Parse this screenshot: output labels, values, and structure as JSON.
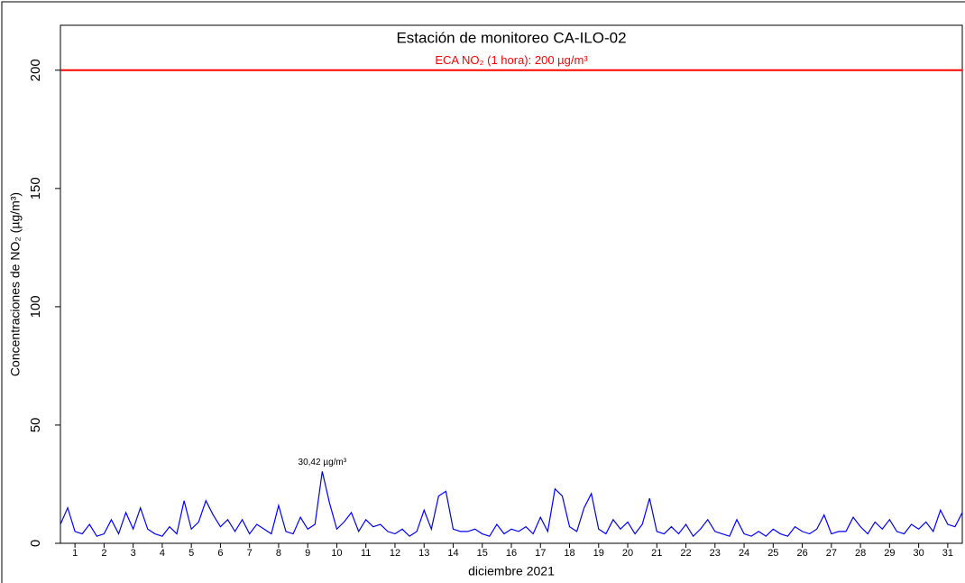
{
  "chart_data": {
    "type": "line",
    "title": "Estación de monitoreo  CA-ILO-02",
    "x_label": "diciembre 2021",
    "y_label": "Concentraciones de NO₂ (µg/m³)",
    "reference_line": {
      "value": 200,
      "label": "ECA NO₂ (1 hora): 200 µg/m³",
      "color": "#ff0000"
    },
    "color": "#0000ff",
    "xlim": [
      0.5,
      31.5
    ],
    "xticks": [
      1,
      2,
      3,
      4,
      5,
      6,
      7,
      8,
      9,
      10,
      11,
      12,
      13,
      14,
      15,
      16,
      17,
      18,
      19,
      20,
      21,
      22,
      23,
      24,
      25,
      26,
      27,
      28,
      29,
      30,
      31
    ],
    "ylim": [
      0,
      219
    ],
    "yticks": [
      0,
      50,
      100,
      150,
      200
    ],
    "grid": false,
    "x": [
      0.5,
      0.75,
      1,
      1.25,
      1.5,
      1.75,
      2,
      2.25,
      2.5,
      2.75,
      3,
      3.25,
      3.5,
      3.75,
      4,
      4.25,
      4.5,
      4.75,
      5,
      5.25,
      5.5,
      5.75,
      6,
      6.25,
      6.5,
      6.75,
      7,
      7.25,
      7.5,
      7.75,
      8,
      8.25,
      8.5,
      8.75,
      9,
      9.25,
      9.5,
      9.75,
      10,
      10.25,
      10.5,
      10.75,
      11,
      11.25,
      11.5,
      11.75,
      12,
      12.25,
      12.5,
      12.75,
      13,
      13.25,
      13.5,
      13.75,
      14,
      14.25,
      14.5,
      14.75,
      15,
      15.25,
      15.5,
      15.75,
      16,
      16.25,
      16.5,
      16.75,
      17,
      17.25,
      17.5,
      17.75,
      18,
      18.25,
      18.5,
      18.75,
      19,
      19.25,
      19.5,
      19.75,
      20,
      20.25,
      20.5,
      20.75,
      21,
      21.25,
      21.5,
      21.75,
      22,
      22.25,
      22.5,
      22.75,
      23,
      23.25,
      23.5,
      23.75,
      24,
      24.25,
      24.5,
      24.75,
      25,
      25.25,
      25.5,
      25.75,
      26,
      26.25,
      26.5,
      26.75,
      27,
      27.25,
      27.5,
      27.75,
      28,
      28.25,
      28.5,
      28.75,
      29,
      29.25,
      29.5,
      29.75,
      30,
      30.25,
      30.5,
      30.75,
      31,
      31.25,
      31.5
    ],
    "values": [
      8,
      15,
      5,
      4,
      8,
      3,
      4,
      10,
      4,
      13,
      6,
      15,
      6,
      4,
      3,
      7,
      4,
      18,
      6,
      9,
      18,
      12,
      7,
      10,
      5,
      10,
      4,
      8,
      6,
      4,
      16,
      5,
      4,
      11,
      6,
      8,
      30.42,
      17,
      6,
      9,
      13,
      5,
      10,
      7,
      8,
      5,
      4,
      6,
      3,
      5,
      14,
      6,
      20,
      22,
      6,
      5,
      5,
      6,
      4,
      3,
      8,
      4,
      6,
      5,
      7,
      4,
      11,
      5,
      23,
      20,
      7,
      5,
      15,
      21,
      6,
      4,
      10,
      6,
      9,
      4,
      8,
      19,
      5,
      4,
      7,
      4,
      8,
      3,
      6,
      10,
      5,
      4,
      3,
      10,
      4,
      3,
      5,
      3,
      6,
      4,
      3,
      7,
      5,
      4,
      6,
      12,
      4,
      5,
      5,
      11,
      7,
      4,
      9,
      6,
      10,
      5,
      4,
      8,
      6,
      9,
      5,
      14,
      8,
      7,
      13
    ],
    "value_labels": [
      null,
      null,
      null,
      null,
      null,
      null,
      null,
      null,
      null,
      null,
      null,
      null,
      null,
      null,
      null,
      null,
      null,
      null,
      null,
      null,
      null,
      null,
      null,
      null,
      null,
      null,
      null,
      null,
      null,
      null,
      null,
      null,
      null,
      null,
      null,
      null,
      "30,42 µg/m³",
      null,
      null,
      null,
      null,
      null,
      null,
      null,
      null,
      null,
      null,
      null,
      null,
      null,
      null,
      null,
      null,
      null,
      null,
      null,
      null,
      null,
      null,
      null,
      null,
      null,
      null,
      null,
      null,
      null,
      null,
      null,
      null,
      null,
      null,
      null,
      null,
      null,
      null,
      null,
      null,
      null,
      null,
      null,
      null,
      null,
      null,
      null,
      null,
      null,
      null,
      null,
      null,
      null,
      null,
      null,
      null,
      null,
      null,
      null,
      null,
      null,
      null,
      null,
      null,
      null,
      null,
      null,
      null,
      null,
      null,
      null,
      null,
      null,
      null,
      null,
      null,
      null,
      null,
      null,
      null,
      null,
      null,
      null,
      null,
      null,
      null,
      null,
      null
    ]
  }
}
